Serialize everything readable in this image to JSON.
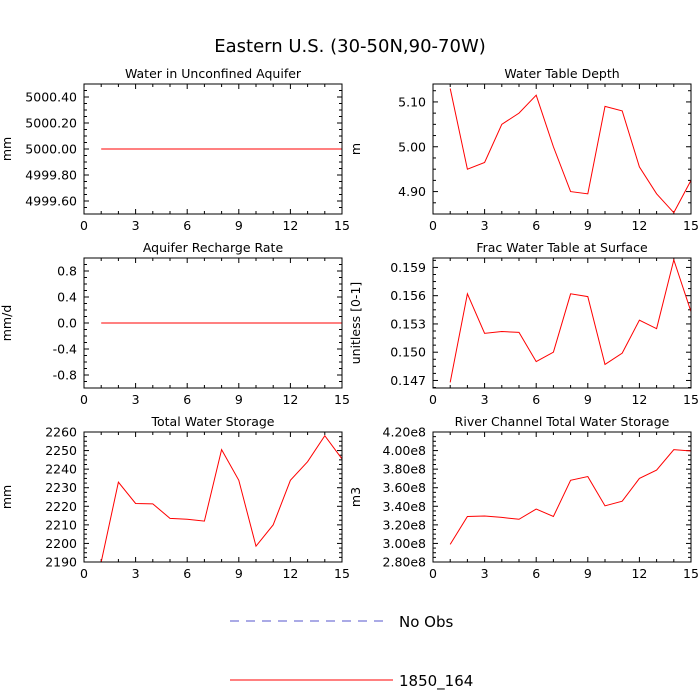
{
  "figure": {
    "title": "Eastern U.S. (30-50N,90-70W)"
  },
  "legend": {
    "entries": [
      {
        "label": "No Obs",
        "color": "#5555cc",
        "style": "dashed"
      },
      {
        "label": "1850_164",
        "color": "#ff0000",
        "style": "solid"
      }
    ]
  },
  "chart_data": [
    {
      "type": "line",
      "title": "Water in Unconfined Aquifer",
      "xlabel": "",
      "ylabel": "mm",
      "xlim": [
        0,
        15
      ],
      "ylim": [
        4999.5,
        5000.5
      ],
      "xticks": [
        0,
        3,
        6,
        9,
        12,
        15
      ],
      "yticks": [
        4999.6,
        4999.8,
        5000.0,
        5000.2,
        5000.4
      ],
      "ytick_labels": [
        "4999.60",
        "4999.80",
        "5000.00",
        "5000.20",
        "5000.40"
      ],
      "series": [
        {
          "name": "1850_164",
          "color": "#ff0000",
          "x": [
            1,
            2,
            3,
            4,
            5,
            6,
            7,
            8,
            9,
            10,
            11,
            12,
            13,
            14,
            15
          ],
          "values": [
            5000,
            5000,
            5000,
            5000,
            5000,
            5000,
            5000,
            5000,
            5000,
            5000,
            5000,
            5000,
            5000,
            5000,
            5000
          ]
        }
      ]
    },
    {
      "type": "line",
      "title": "Water Table Depth",
      "xlabel": "",
      "ylabel": "m",
      "xlim": [
        0,
        15
      ],
      "ylim": [
        4.85,
        5.14
      ],
      "xticks": [
        0,
        3,
        6,
        9,
        12,
        15
      ],
      "yticks": [
        4.9,
        5.0,
        5.1
      ],
      "ytick_labels": [
        "4.90",
        "5.00",
        "5.10"
      ],
      "series": [
        {
          "name": "1850_164",
          "color": "#ff0000",
          "x": [
            1,
            2,
            3,
            4,
            5,
            6,
            7,
            8,
            9,
            10,
            11,
            12,
            13,
            14,
            15
          ],
          "values": [
            5.13,
            4.95,
            4.965,
            5.05,
            5.075,
            5.115,
            5.0,
            4.9,
            4.895,
            5.09,
            5.08,
            4.955,
            4.895,
            4.853,
            4.925
          ]
        }
      ]
    },
    {
      "type": "line",
      "title": "Aquifer Recharge Rate",
      "xlabel": "",
      "ylabel": "mm/d",
      "xlim": [
        0,
        15
      ],
      "ylim": [
        -1.0,
        1.0
      ],
      "xticks": [
        0,
        3,
        6,
        9,
        12,
        15
      ],
      "yticks": [
        -0.8,
        -0.4,
        0.0,
        0.4,
        0.8
      ],
      "ytick_labels": [
        "-0.8",
        "-0.4",
        "0.0",
        "0.4",
        "0.8"
      ],
      "series": [
        {
          "name": "1850_164",
          "color": "#ff0000",
          "x": [
            1,
            2,
            3,
            4,
            5,
            6,
            7,
            8,
            9,
            10,
            11,
            12,
            13,
            14,
            15
          ],
          "values": [
            0,
            0,
            0,
            0,
            0,
            0,
            0,
            0,
            0,
            0,
            0,
            0,
            0,
            0,
            0
          ]
        }
      ]
    },
    {
      "type": "line",
      "title": "Frac Water Table at Surface",
      "xlabel": "",
      "ylabel": "unitless [0-1]",
      "xlim": [
        0,
        15
      ],
      "ylim": [
        0.1462,
        0.16
      ],
      "xticks": [
        0,
        3,
        6,
        9,
        12,
        15
      ],
      "yticks": [
        0.147,
        0.15,
        0.153,
        0.156,
        0.159
      ],
      "ytick_labels": [
        "0.147",
        "0.150",
        "0.153",
        "0.156",
        "0.159"
      ],
      "series": [
        {
          "name": "1850_164",
          "color": "#ff0000",
          "x": [
            1,
            2,
            3,
            4,
            5,
            6,
            7,
            8,
            9,
            10,
            11,
            12,
            13,
            14,
            15
          ],
          "values": [
            0.1468,
            0.1562,
            0.152,
            0.1522,
            0.1521,
            0.149,
            0.15,
            0.1562,
            0.1559,
            0.1487,
            0.1499,
            0.1534,
            0.1525,
            0.1598,
            0.1543
          ]
        }
      ]
    },
    {
      "type": "line",
      "title": "Total Water Storage",
      "xlabel": "",
      "ylabel": "mm",
      "xlim": [
        0,
        15
      ],
      "ylim": [
        2190,
        2260
      ],
      "xticks": [
        0,
        3,
        6,
        9,
        12,
        15
      ],
      "yticks": [
        2190,
        2200,
        2210,
        2220,
        2230,
        2240,
        2250,
        2260
      ],
      "ytick_labels": [
        "2190",
        "2200",
        "2210",
        "2220",
        "2230",
        "2240",
        "2250",
        "2260"
      ],
      "series": [
        {
          "name": "1850_164",
          "color": "#ff0000",
          "x": [
            1,
            2,
            3,
            4,
            5,
            6,
            7,
            8,
            9,
            10,
            11,
            12,
            13,
            14,
            15
          ],
          "values": [
            2190,
            2233,
            2221.5,
            2221.3,
            2213.5,
            2213,
            2212,
            2250.5,
            2234,
            2198.5,
            2210,
            2234,
            2244,
            2258,
            2245.5
          ]
        }
      ]
    },
    {
      "type": "line",
      "title": "River Channel Total Water Storage",
      "xlabel": "",
      "ylabel": "m3",
      "xlim": [
        0,
        15
      ],
      "ylim": [
        280000000.0,
        420000000.0
      ],
      "xticks": [
        0,
        3,
        6,
        9,
        12,
        15
      ],
      "yticks": [
        280000000.0,
        300000000.0,
        320000000.0,
        340000000.0,
        360000000.0,
        380000000.0,
        400000000.0,
        420000000.0
      ],
      "ytick_labels": [
        "2.80e8",
        "3.00e8",
        "3.20e8",
        "3.40e8",
        "3.60e8",
        "3.80e8",
        "4.00e8",
        "4.20e8"
      ],
      "series": [
        {
          "name": "1850_164",
          "color": "#ff0000",
          "x": [
            1,
            2,
            3,
            4,
            5,
            6,
            7,
            8,
            9,
            10,
            11,
            12,
            13,
            14,
            15
          ],
          "values": [
            299000000.0,
            329000000.0,
            329500000.0,
            328000000.0,
            326000000.0,
            337000000.0,
            329000000.0,
            368000000.0,
            372000000.0,
            340500000.0,
            345500000.0,
            370000000.0,
            379000000.0,
            401000000.0,
            399500000.0
          ]
        }
      ]
    }
  ]
}
